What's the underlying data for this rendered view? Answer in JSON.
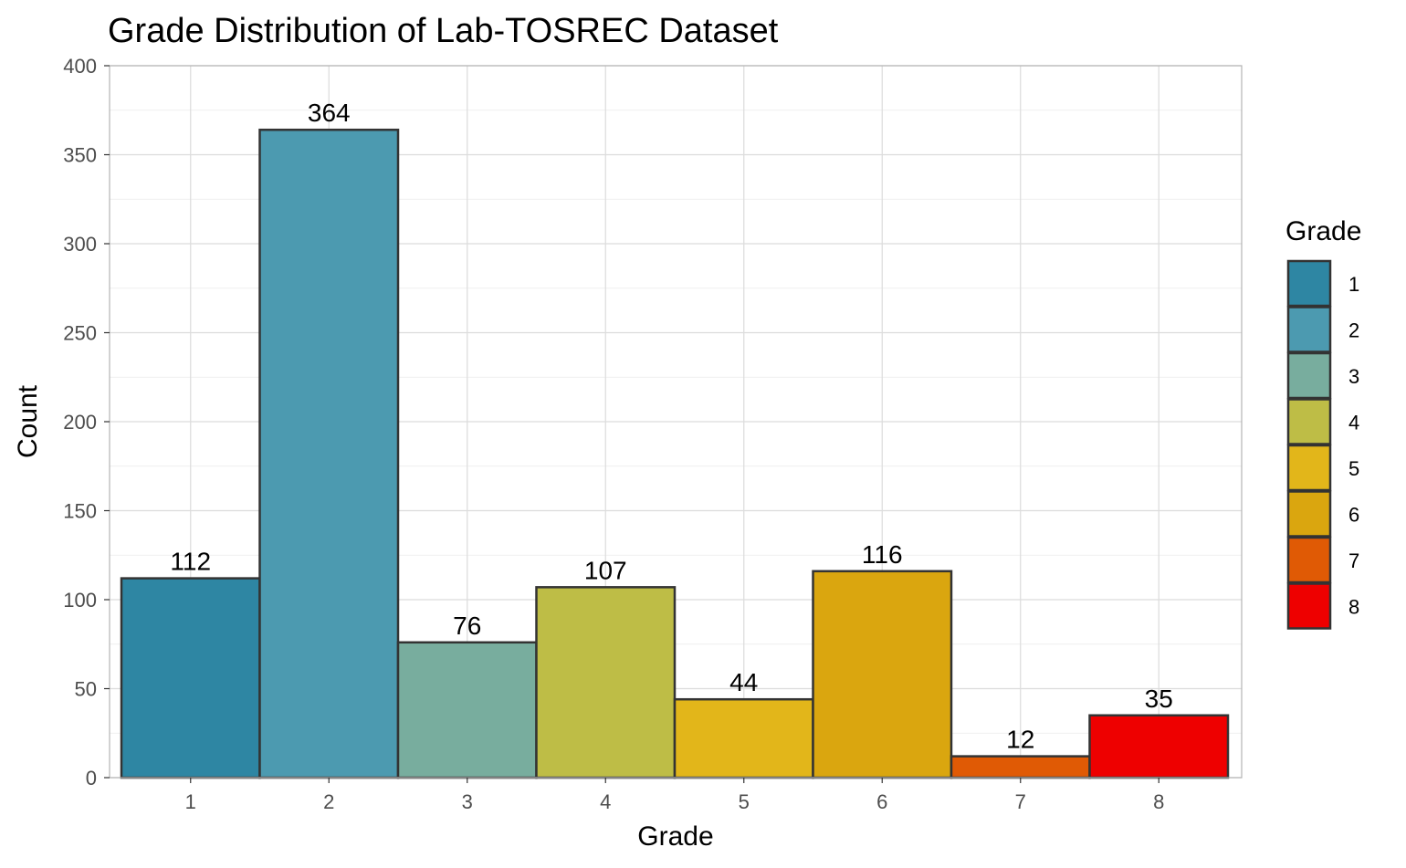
{
  "chart_data": {
    "type": "bar",
    "title": "Grade Distribution of Lab-TOSREC Dataset",
    "xlabel": "Grade",
    "ylabel": "Count",
    "categories": [
      "1",
      "2",
      "3",
      "4",
      "5",
      "6",
      "7",
      "8"
    ],
    "values": [
      112,
      364,
      76,
      107,
      44,
      116,
      12,
      35
    ],
    "data_labels": [
      "112",
      "364",
      "76",
      "107",
      "44",
      "116",
      "12",
      "35"
    ],
    "colors": [
      "#2E86A3",
      "#4C9AB0",
      "#78AD9E",
      "#BEBD46",
      "#E2B61A",
      "#DAA60F",
      "#E05A05",
      "#EE0000"
    ],
    "ylim": [
      0,
      400
    ],
    "yticks": [
      0,
      50,
      100,
      150,
      200,
      250,
      300,
      350,
      400
    ],
    "ytick_labels": [
      "0",
      "50",
      "100",
      "150",
      "200",
      "250",
      "300",
      "350",
      "400"
    ],
    "grid": true,
    "legend": {
      "title": "Grade",
      "position": "right",
      "entries": [
        "1",
        "2",
        "3",
        "4",
        "5",
        "6",
        "7",
        "8"
      ]
    }
  }
}
